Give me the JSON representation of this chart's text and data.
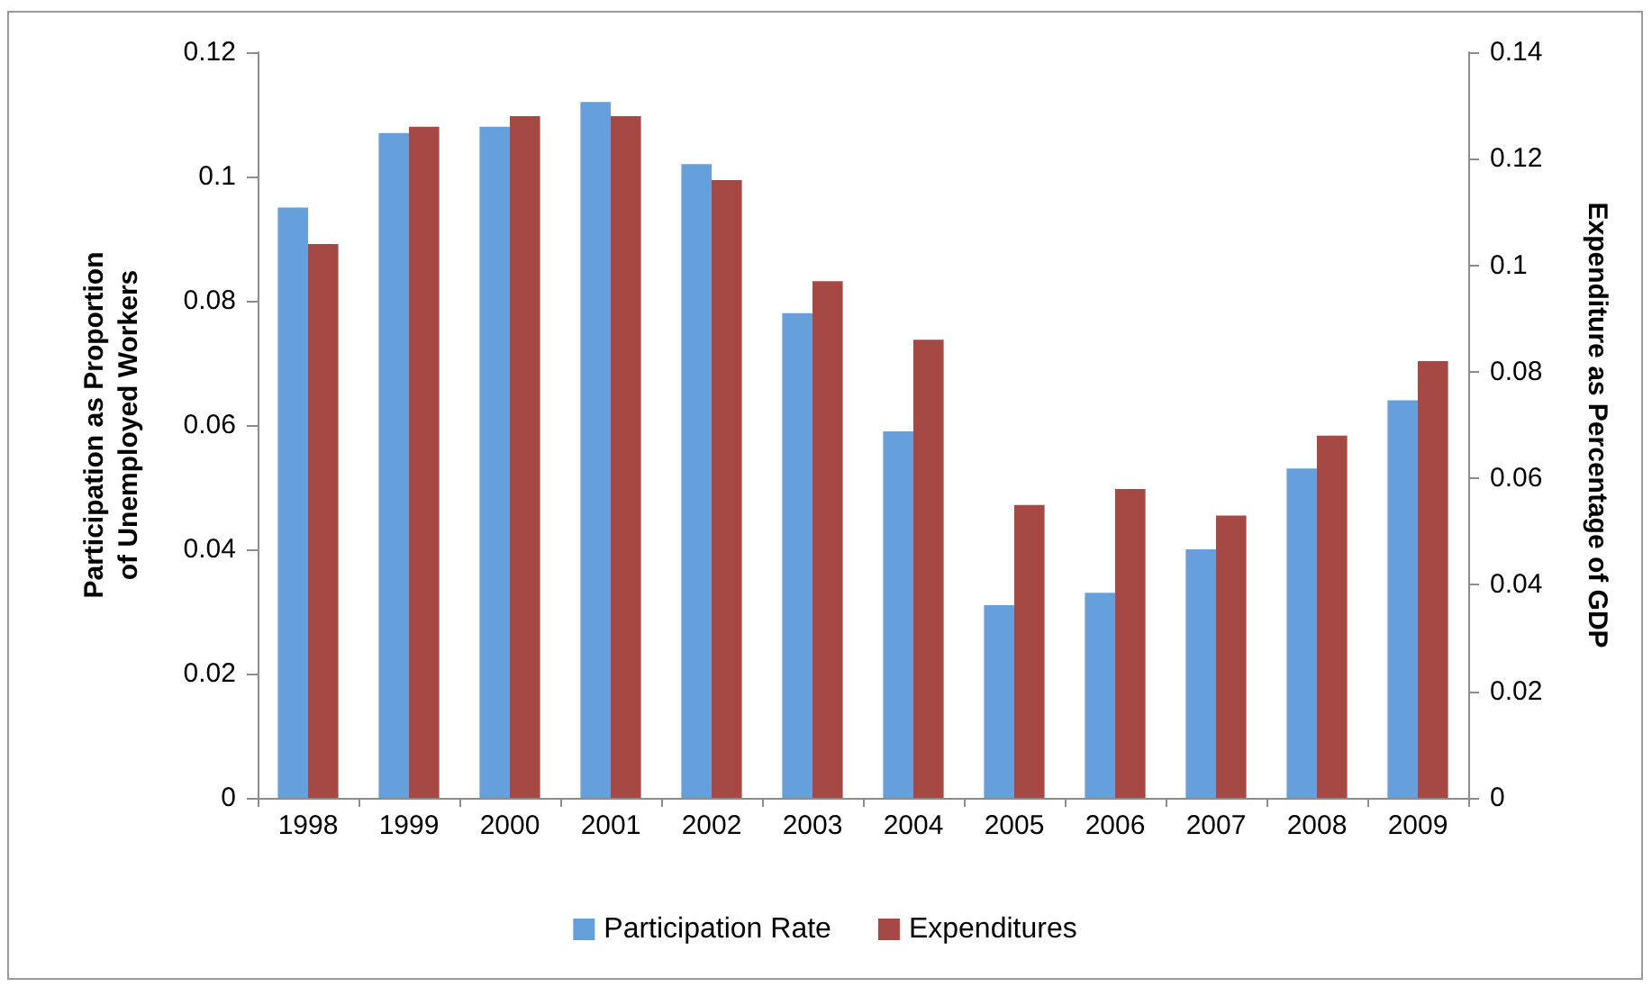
{
  "chart_data": {
    "type": "bar",
    "ylabel": "Participation as Proportion\nof Unemployed Workers",
    "y2label": "Expenditure as Percentage of GDP",
    "categories": [
      "1998",
      "1999",
      "2000",
      "2001",
      "2002",
      "2003",
      "2004",
      "2005",
      "2006",
      "2007",
      "2008",
      "2009"
    ],
    "series": [
      {
        "name": "Participation Rate",
        "color": "#659fdc",
        "values": [
          0.095,
          0.107,
          0.108,
          0.112,
          0.102,
          0.078,
          0.059,
          0.031,
          0.033,
          0.04,
          0.053,
          0.064
        ]
      },
      {
        "name": "Expenditures",
        "color": "#a64843",
        "axis": "y2",
        "values": [
          0.104,
          0.126,
          0.128,
          0.128,
          0.116,
          0.097,
          0.086,
          0.055,
          0.058,
          0.053,
          0.068,
          0.082
        ]
      }
    ],
    "ylim": [
      0,
      0.12
    ],
    "yticks": [
      0,
      0.02,
      0.04,
      0.06,
      0.08,
      0.1,
      0.12
    ],
    "y2lim": [
      0,
      0.14
    ],
    "y2ticks": [
      0,
      0.02,
      0.04,
      0.06,
      0.08,
      0.1,
      0.12,
      0.14
    ],
    "grid": false,
    "legend": "bottom"
  }
}
